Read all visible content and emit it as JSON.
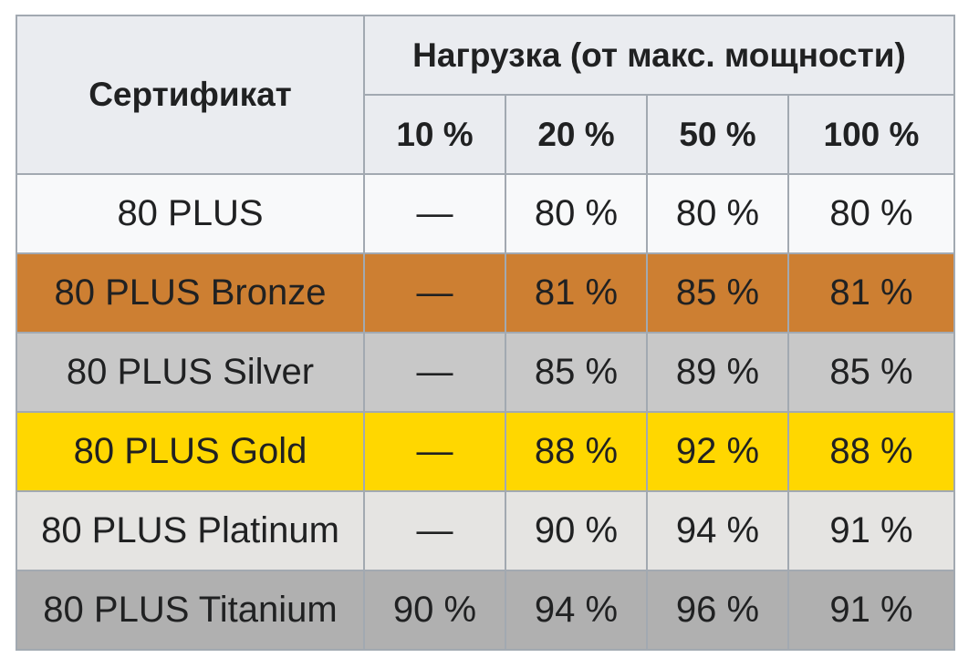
{
  "table": {
    "header": {
      "certificate": "Сертификат",
      "load_group": "Нагрузка (от макс. мощности)",
      "load_columns": [
        "10 %",
        "20 %",
        "50 %",
        "100 %"
      ]
    },
    "rows": [
      {
        "name": "80 PLUS",
        "values": [
          "—",
          "80 %",
          "80 %",
          "80 %"
        ],
        "color": "#f8f9fa"
      },
      {
        "name": "80 PLUS Bronze",
        "values": [
          "—",
          "81 %",
          "85 %",
          "81 %"
        ],
        "color": "#cd7f32"
      },
      {
        "name": "80 PLUS Silver",
        "values": [
          "—",
          "85 %",
          "89 %",
          "85 %"
        ],
        "color": "#c8c8c8"
      },
      {
        "name": "80 PLUS Gold",
        "values": [
          "—",
          "88 %",
          "92 %",
          "88 %"
        ],
        "color": "#ffd700"
      },
      {
        "name": "80 PLUS Platinum",
        "values": [
          "—",
          "90 %",
          "94 %",
          "91 %"
        ],
        "color": "#e5e4e2"
      },
      {
        "name": "80 PLUS Titanium",
        "values": [
          "90 %",
          "94 %",
          "96 %",
          "91 %"
        ],
        "color": "#b0b0b0"
      }
    ],
    "colors": {
      "header_bg": "#eaecf0",
      "border": "#a2a9b1",
      "text": "#202122"
    }
  }
}
